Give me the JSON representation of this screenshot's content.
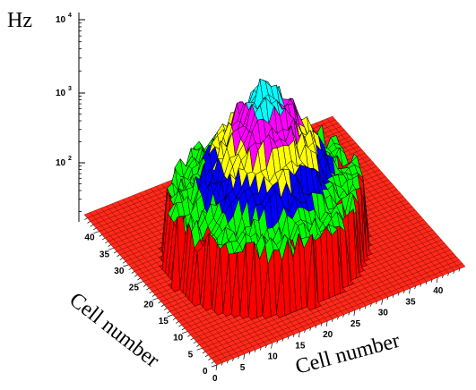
{
  "chart_data": {
    "type": "surface",
    "title": "",
    "z_axis": {
      "label": "Hz",
      "scale": "log",
      "ticks": [
        {
          "base": "10",
          "exp": "2",
          "value": 100
        },
        {
          "base": "10",
          "exp": "3",
          "value": 1000
        },
        {
          "base": "10",
          "exp": "4",
          "value": 10000
        }
      ]
    },
    "x_axis": {
      "label": "Cell number",
      "ticks": [
        "0",
        "5",
        "10",
        "15",
        "20",
        "25",
        "30",
        "35",
        "40"
      ]
    },
    "y_axis": {
      "label": "Cell number",
      "ticks": [
        "0",
        "5",
        "10",
        "15",
        "20",
        "25",
        "30",
        "35",
        "40"
      ]
    },
    "grid_size": [
      45,
      45
    ],
    "peak_hz": 11000,
    "color_bands": [
      {
        "color": "#ff0000",
        "min_hz": 1,
        "max_hz": 20
      },
      {
        "color": "#00ff00",
        "min_hz": 20,
        "max_hz": 60
      },
      {
        "color": "#0000ff",
        "min_hz": 60,
        "max_hz": 200
      },
      {
        "color": "#ffff00",
        "min_hz": 200,
        "max_hz": 700
      },
      {
        "color": "#ff00ff",
        "min_hz": 700,
        "max_hz": 2500
      },
      {
        "color": "#00ffff",
        "min_hz": 2500,
        "max_hz": 11000
      }
    ]
  }
}
